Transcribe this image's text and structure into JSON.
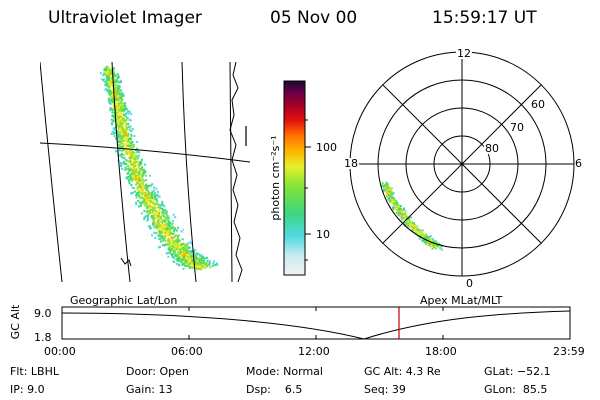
{
  "header": {
    "instrument": "Ultraviolet Imager",
    "date": "05 Nov 00",
    "time": "15:59:17 UT"
  },
  "colorbar": {
    "unit_label": "photon cm⁻²s⁻¹",
    "ticks": [
      "100",
      "10"
    ]
  },
  "polar_plot": {
    "mlt_labels": [
      "12",
      "18",
      "6",
      "0"
    ],
    "lat_labels": [
      "60",
      "70",
      "80"
    ]
  },
  "timeline": {
    "left_title": "Geographic Lat/Lon",
    "right_title": "Apex MLat/MLT",
    "axis_title": "GC Alt",
    "y_ticks": [
      "9.0",
      "1.8"
    ],
    "x_ticks": [
      "00:00",
      "06:00",
      "12:00",
      "18:00",
      "23:59"
    ]
  },
  "footer": {
    "filter": "Flt: LBHL",
    "ip": "IP:  9.0",
    "door": "Door: Open",
    "gain": "Gain: 13",
    "mode": "Mode: Normal",
    "dsp": "Dsp:    6.5",
    "gc_alt": "GC Alt: 4.3 Re",
    "seq": "Seq: 39",
    "glat": "GLat: −52.1",
    "glon": "GLon:  85.5"
  },
  "colors": {
    "grid": "#000000",
    "current_time_marker": "#c00000",
    "colorbar_scale": [
      "#f2f2f2",
      "#50d8e0",
      "#3cd77d",
      "#7ee23c",
      "#e6f028",
      "#ffb400",
      "#ff6e00",
      "#e01010",
      "#a00028",
      "#1a0a30"
    ]
  }
}
